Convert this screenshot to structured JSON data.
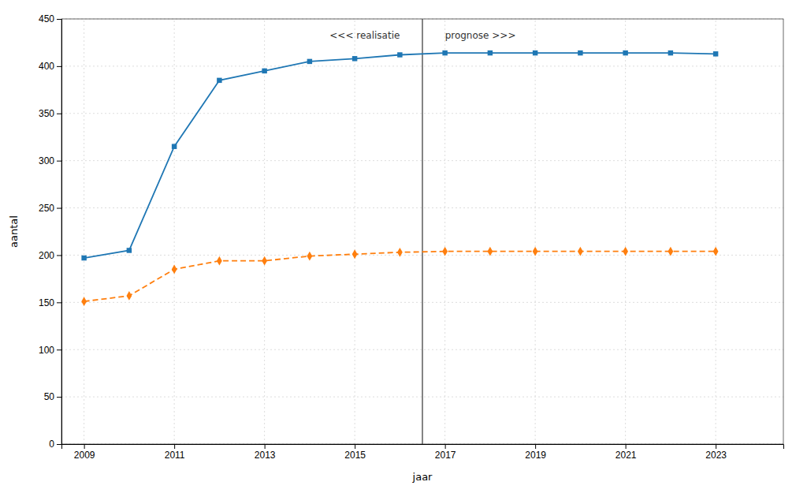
{
  "chart_data": {
    "type": "line",
    "xlabel": "jaar",
    "ylabel": "aantal",
    "x": [
      2009,
      2010,
      2011,
      2012,
      2013,
      2014,
      2015,
      2016,
      2017,
      2018,
      2019,
      2020,
      2021,
      2022,
      2023
    ],
    "series": [
      {
        "values": [
          197,
          205,
          315,
          385,
          395,
          405,
          408,
          412,
          414,
          414,
          414,
          414,
          414,
          414,
          413
        ],
        "marker": "square",
        "line_style": "solid"
      },
      {
        "values": [
          151,
          157,
          185,
          194,
          194,
          199,
          201,
          203,
          204,
          204,
          204,
          204,
          204,
          204,
          204
        ],
        "marker": "diamond",
        "line_style": "dashed"
      }
    ],
    "xlim": [
      2008.5,
      2024.5
    ],
    "xticks": [
      2009,
      2011,
      2013,
      2015,
      2017,
      2019,
      2021,
      2023
    ],
    "ylim": [
      0,
      450
    ],
    "yticks": [
      0,
      50,
      100,
      150,
      200,
      250,
      300,
      350,
      400,
      450
    ],
    "vertical_lines": [
      2016.5
    ],
    "annotations": [
      {
        "text": "<<< realisatie",
        "x": 2016.0,
        "y": 432
      },
      {
        "text": "prognose >>>",
        "x": 2017.0,
        "y": 432
      }
    ],
    "grid": true
  }
}
